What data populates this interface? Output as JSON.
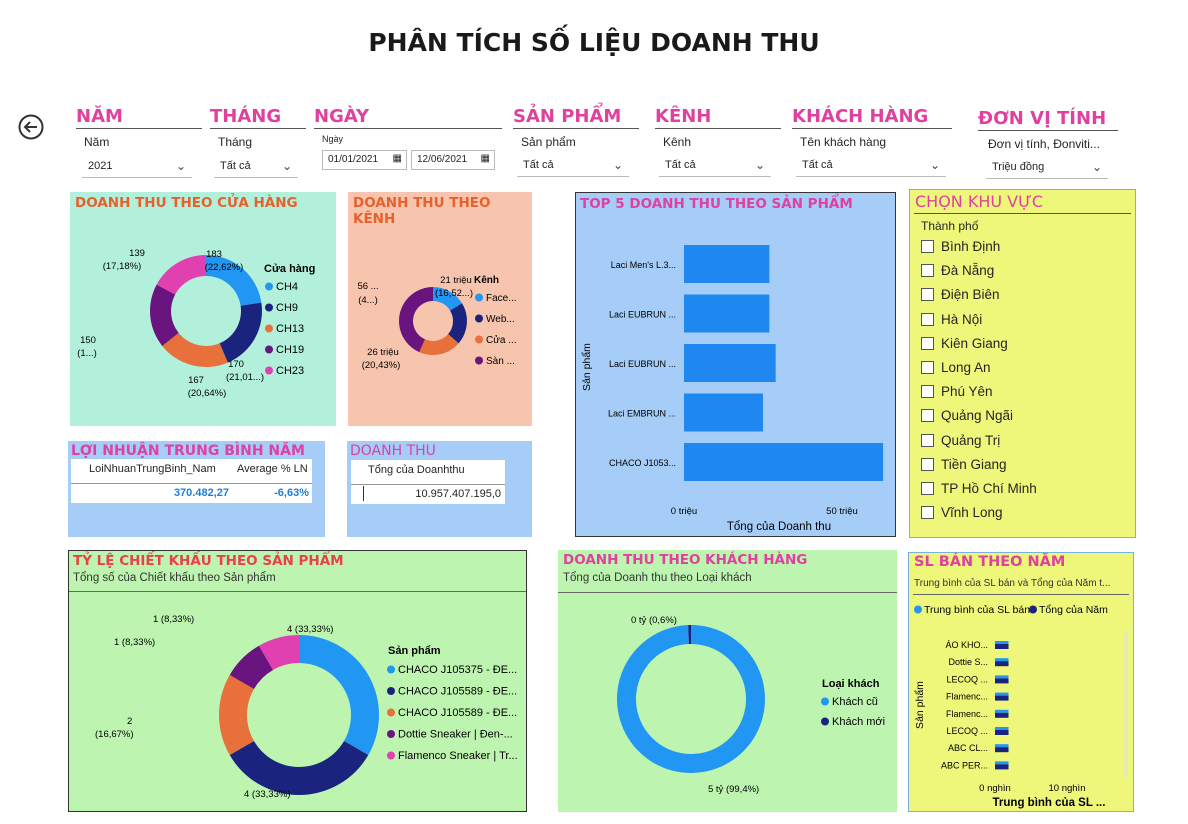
{
  "title": "PHÂN TÍCH SỐ LIỆU DOANH THU",
  "filters": [
    {
      "key": "nam",
      "header": "NĂM",
      "label": "Năm",
      "value": "2021"
    },
    {
      "key": "thang",
      "header": "THÁNG",
      "label": "Tháng",
      "value": "Tất cả"
    },
    {
      "key": "ngay",
      "header": "NGÀY",
      "label": "Ngày",
      "date_from": "01/01/2021",
      "date_to": "12/06/2021"
    },
    {
      "key": "sanpham",
      "header": "SẢN PHẨM",
      "label": "Sản phẩm",
      "value": "Tất cả"
    },
    {
      "key": "kenh",
      "header": "KÊNH",
      "label": "Kênh",
      "value": "Tất cả"
    },
    {
      "key": "khachhang",
      "header": "KHÁCH HÀNG",
      "label": "Tên khách hàng",
      "value": "Tất cả"
    },
    {
      "key": "donvi",
      "header": "ĐƠN VỊ TÍNH",
      "label": "Đơn vị tính, Đonviti...",
      "value": "Triệu đồng"
    }
  ],
  "store_panel": {
    "title": "DOANH THU THEO CỬA HÀNG",
    "legend_title": "Cửa hàng",
    "bg": "#b2f0dc",
    "title_color": "#e8602c",
    "labels": [
      {
        "v": "183",
        "p": "(22,62%)"
      },
      {
        "v": "170",
        "p": "(21,01...)"
      },
      {
        "v": "167",
        "p": "(20,64%)"
      },
      {
        "v": "150",
        "p": "(1...)"
      },
      {
        "v": "139",
        "p": "(17,18%)"
      }
    ]
  },
  "channel_panel": {
    "title": "DOANH THU THEO KÊNH",
    "legend_title": "Kênh",
    "bg": "#f7c5ae",
    "title_color": "#e8602c",
    "labels": [
      {
        "v": "21 triệu",
        "p": "(16,52...)"
      },
      {
        "v": "26 triệu",
        "p": "(20,43%)"
      },
      {
        "v": "56 ...",
        "p": "(4...)"
      }
    ]
  },
  "top5_panel": {
    "title": "TOP 5 DOANH THU THEO SẢN PHẨM",
    "bg": "#a6cdf7",
    "title_color": "#e040a0",
    "ylabel": "Sản phẩm",
    "xlabel": "Tổng của Doanh thu",
    "ticks": [
      "0 triệu",
      "50 triệu"
    ]
  },
  "region_panel": {
    "title": "CHỌN KHU VỰC",
    "field": "Thành phố",
    "bg": "#eef77a",
    "title_color": "#e040a0",
    "items": [
      "Bình Định",
      "Đà Nẵng",
      "Điện Biên",
      "Hà Nội",
      "Kiên Giang",
      "Long An",
      "Phú Yên",
      "Quảng Ngãi",
      "Quảng Trị",
      "Tiền Giang",
      "TP Hồ Chí Minh",
      "Vĩnh Long"
    ]
  },
  "profit_panel": {
    "title": "LỢI NHUẬN TRUNG BÌNH NĂM",
    "bg": "#a6cdf7",
    "title_color": "#e040a0",
    "col1": "LoiNhuanTrungBinh_Nam",
    "col2": "Average % LN",
    "val1": "370.482,27",
    "val2": "-6,63%"
  },
  "revenue_panel": {
    "title": "DOANH THU",
    "bg": "#a6cdf7",
    "title_color": "#e040a0",
    "col1": "Tổng của Doanhthu",
    "val1": "10.957.407.195,0"
  },
  "discount_panel": {
    "title": "TỶ LỆ CHIẾT KHẤU THEO SẢN PHẨM",
    "subtitle": "Tổng số của Chiết khấu theo Sản phẩm",
    "legend_title": "Sản phẩm",
    "bg": "#bdf5b0",
    "title_color": "#e8404c",
    "labels": [
      {
        "v": "4 (33,33%)"
      },
      {
        "v": "4 (33,33%)"
      },
      {
        "v": "2",
        "p": "(16,67%)"
      },
      {
        "v": "1 (8,33%)"
      },
      {
        "v": "1 (8,33%)"
      }
    ]
  },
  "customer_panel": {
    "title": "DOANH THU THEO KHÁCH HÀNG",
    "subtitle": "Tổng của Doanh thu theo Loại khách",
    "legend_title": "Loại khách",
    "bg": "#bdf5b0",
    "title_color": "#e040a0",
    "labels": [
      {
        "v": "0 tỷ (0,6%)"
      },
      {
        "v": "5 tỷ (99,4%)"
      }
    ]
  },
  "sales_panel": {
    "title": "SL BÁN THEO NĂM",
    "subtitle": "Trung bình của SL bán và Tổng của Năm t...",
    "bg": "#eef77a",
    "title_color": "#e040a0",
    "ylabel": "Sản phẩm",
    "xlabel": "Trung bình của SL ...",
    "ticks": [
      "0 nghìn",
      "10 nghìn"
    ]
  },
  "chart_data": [
    {
      "type": "pie",
      "categories": [
        "CH4",
        "CH9",
        "CH13",
        "CH19",
        "CH23"
      ],
      "values": [
        183,
        170,
        167,
        150,
        139
      ],
      "colors": [
        "#2196f3",
        "#1a237e",
        "#e8703a",
        "#6a1480",
        "#e040b0"
      ]
    },
    {
      "type": "pie",
      "categories": [
        "Face...",
        "Web...",
        "Cửa ...",
        "Sàn ..."
      ],
      "values": [
        21,
        26,
        26,
        56
      ],
      "colors": [
        "#2196f3",
        "#1a237e",
        "#e8703a",
        "#6a1480"
      ]
    },
    {
      "type": "bar",
      "categories": [
        "Laci Men's L.3...",
        "Laci EUBRUN ...",
        "Laci EUBRUN ...",
        "Laci EMBRUN ...",
        "CHACO J1053..."
      ],
      "values": [
        27,
        27,
        29,
        25,
        63
      ],
      "xlim": [
        0,
        70
      ],
      "color": "#1e88f0"
    },
    {
      "type": "pie",
      "categories": [
        "CHACO J105375 - ĐE...",
        "CHACO J105589 - ĐE...",
        "CHACO J105589 - ĐE...",
        "Dottie Sneaker | Đen-...",
        "Flamenco Sneaker | Tr..."
      ],
      "values": [
        4,
        4,
        2,
        1,
        1
      ],
      "colors": [
        "#2196f3",
        "#1a237e",
        "#e8703a",
        "#6a1480",
        "#e040b0"
      ]
    },
    {
      "type": "pie",
      "categories": [
        "Khách cũ",
        "Khách mới"
      ],
      "values": [
        99.4,
        0.6
      ],
      "colors": [
        "#2196f3",
        "#1a237e"
      ]
    },
    {
      "type": "bar",
      "series": [
        {
          "name": "Trung bình của SL bán"
        },
        {
          "name": "Tổng của Năm"
        }
      ],
      "categories": [
        "ÁO KHO...",
        "Dottie S...",
        "LECOQ ...",
        "Flamenc...",
        "Flamenc...",
        "LECOQ ...",
        "ABC CL...",
        "ABC PER..."
      ],
      "values": [
        1,
        1,
        1,
        1,
        1,
        1,
        1,
        1
      ],
      "xlim": [
        0,
        15
      ],
      "colors": [
        "#2196f3",
        "#1a237e"
      ]
    }
  ]
}
